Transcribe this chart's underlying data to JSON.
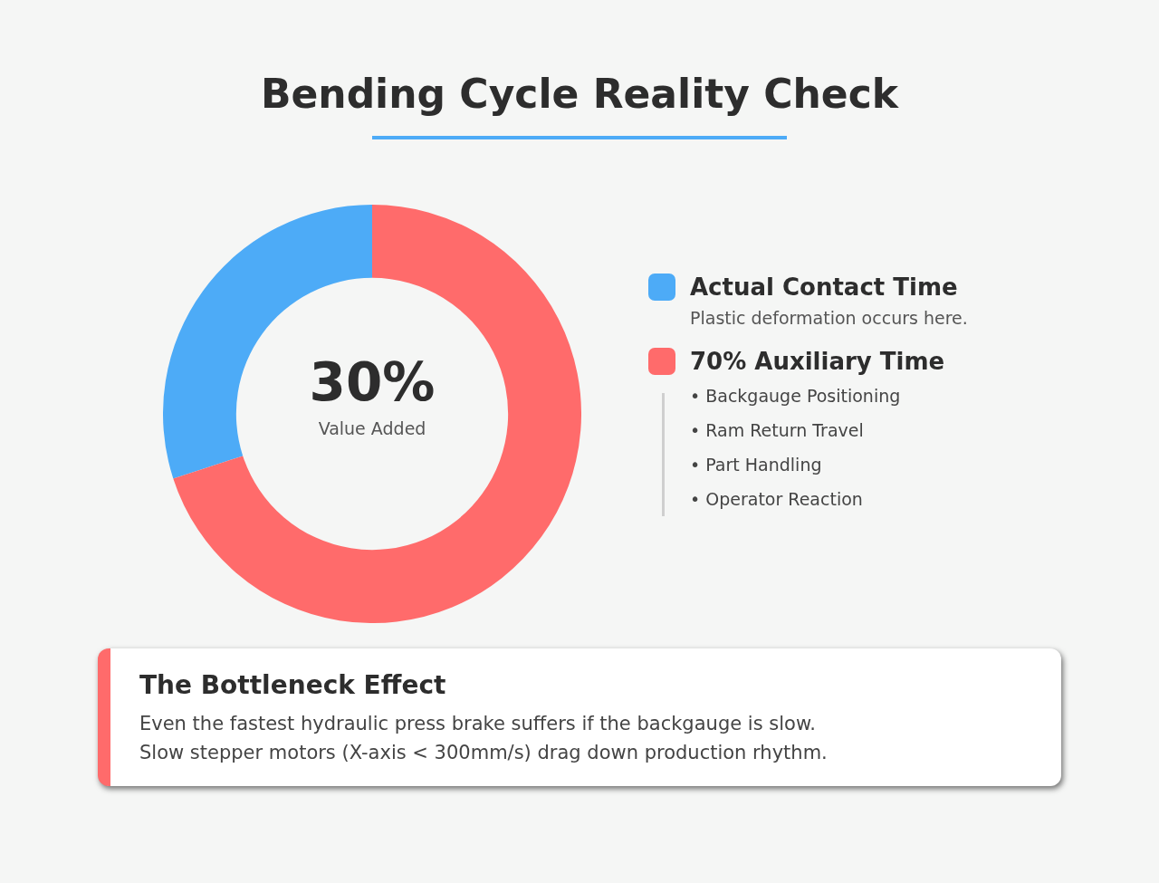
{
  "chart_data": {
    "type": "donut",
    "title": "Bending Cycle Reality Check",
    "categories": [
      "Actual Contact Time",
      "70% Auxiliary Time"
    ],
    "values": [
      30,
      70
    ],
    "colors": [
      "#4dabf7",
      "#ff6b6b"
    ],
    "value_labels": [
      "30%",
      null
    ],
    "legend": "right",
    "annotations": [
      "Value Added",
      "Plastic deformation occurs here.",
      "• Backgauge Positioning",
      "• Ram Return Travel",
      "• Part Handling",
      "• Operator Reaction",
      "The Bottleneck Effect",
      "Even the fastest hydraulic press brake suffers if the backgauge is slow.",
      "Slow stepper motors (X-axis < 300mm/s) drag down production rhythm."
    ]
  }
}
